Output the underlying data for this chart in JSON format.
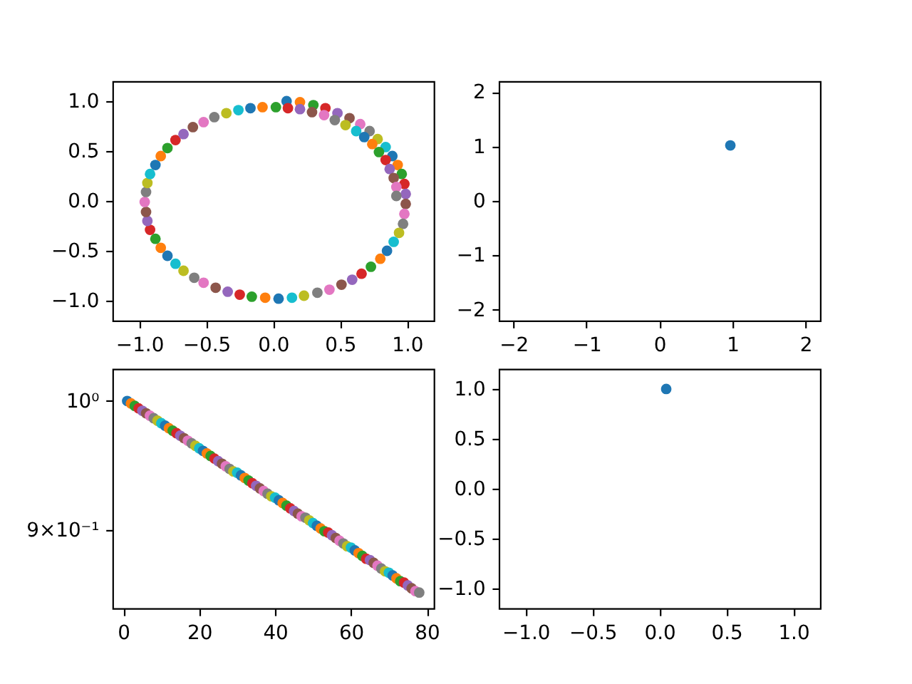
{
  "chart_data": [
    {
      "type": "scatter",
      "marker": "circle",
      "xlim": [
        -1.2,
        1.2
      ],
      "ylim": [
        -1.2,
        1.2
      ],
      "xticks": [
        {
          "value": -1,
          "label": "−1.0"
        },
        {
          "value": -0.5,
          "label": "−0.5"
        },
        {
          "value": 0,
          "label": "0.0"
        },
        0.5,
        {
          "value": 1,
          "label": "1.0"
        }
      ],
      "yticks": [
        {
          "value": -1,
          "label": "−1.0"
        },
        {
          "value": -0.5,
          "label": "−0.5"
        },
        {
          "value": 0,
          "label": "0.0"
        },
        0.5,
        {
          "value": 1,
          "label": "1.0"
        }
      ],
      "x": [
        0.1,
        0.2,
        0.3,
        0.39,
        0.48,
        0.57,
        0.65,
        0.72,
        0.78,
        0.84,
        0.89,
        0.93,
        0.96,
        0.98,
        0.99,
        0.99,
        0.98,
        0.97,
        0.94,
        0.9,
        0.85,
        0.8,
        0.73,
        0.66,
        0.59,
        0.51,
        0.42,
        0.33,
        0.23,
        0.14,
        0.04,
        -0.06,
        -0.16,
        -0.25,
        -0.34,
        -0.43,
        -0.52,
        -0.59,
        -0.67,
        -0.73,
        -0.79,
        -0.84,
        -0.88,
        -0.92,
        -0.94,
        -0.95,
        -0.96,
        -0.95,
        -0.94,
        -0.92,
        -0.88,
        -0.84,
        -0.79,
        -0.73,
        -0.67,
        -0.6,
        -0.52,
        -0.44,
        -0.35,
        -0.26,
        -0.17,
        -0.08,
        0.02,
        0.11,
        0.2,
        0.29,
        0.38,
        0.46,
        0.54,
        0.62,
        0.68,
        0.74,
        0.79,
        0.84,
        0.87,
        0.9,
        0.92,
        0.92
      ],
      "values": [
        1.0,
        0.99,
        0.96,
        0.93,
        0.88,
        0.83,
        0.77,
        0.7,
        0.62,
        0.54,
        0.45,
        0.36,
        0.27,
        0.17,
        0.07,
        -0.03,
        -0.13,
        -0.23,
        -0.32,
        -0.41,
        -0.5,
        -0.58,
        -0.66,
        -0.73,
        -0.79,
        -0.84,
        -0.89,
        -0.92,
        -0.95,
        -0.97,
        -0.98,
        -0.97,
        -0.96,
        -0.94,
        -0.91,
        -0.87,
        -0.82,
        -0.77,
        -0.7,
        -0.63,
        -0.55,
        -0.47,
        -0.38,
        -0.29,
        -0.2,
        -0.11,
        -0.01,
        0.09,
        0.18,
        0.27,
        0.36,
        0.45,
        0.53,
        0.61,
        0.67,
        0.74,
        0.79,
        0.84,
        0.88,
        0.91,
        0.93,
        0.94,
        0.94,
        0.93,
        0.92,
        0.89,
        0.86,
        0.81,
        0.76,
        0.7,
        0.64,
        0.57,
        0.49,
        0.41,
        0.32,
        0.23,
        0.14,
        0.05
      ],
      "colors": [
        "#1f77b4",
        "#ff7f0e",
        "#2ca02c",
        "#d62728",
        "#9467bd",
        "#8c564b",
        "#e377c2",
        "#7f7f7f",
        "#bcbd22",
        "#17becf",
        "#1f77b4",
        "#ff7f0e",
        "#2ca02c",
        "#d62728",
        "#9467bd",
        "#8c564b",
        "#e377c2",
        "#7f7f7f",
        "#bcbd22",
        "#17becf",
        "#1f77b4",
        "#ff7f0e",
        "#2ca02c",
        "#d62728",
        "#9467bd",
        "#8c564b",
        "#e377c2",
        "#7f7f7f",
        "#bcbd22",
        "#17becf",
        "#1f77b4",
        "#ff7f0e",
        "#2ca02c",
        "#d62728",
        "#9467bd",
        "#8c564b",
        "#e377c2",
        "#7f7f7f",
        "#bcbd22",
        "#17becf",
        "#1f77b4",
        "#ff7f0e",
        "#2ca02c",
        "#d62728",
        "#9467bd",
        "#8c564b",
        "#e377c2",
        "#7f7f7f",
        "#bcbd22",
        "#17becf",
        "#1f77b4",
        "#ff7f0e",
        "#2ca02c",
        "#d62728",
        "#9467bd",
        "#8c564b",
        "#e377c2",
        "#7f7f7f",
        "#bcbd22",
        "#17becf",
        "#1f77b4",
        "#ff7f0e",
        "#2ca02c",
        "#d62728",
        "#9467bd",
        "#8c564b",
        "#e377c2",
        "#7f7f7f",
        "#bcbd22",
        "#17becf",
        "#1f77b4",
        "#ff7f0e",
        "#2ca02c",
        "#d62728",
        "#9467bd",
        "#8c564b",
        "#e377c2",
        "#7f7f7f"
      ]
    },
    {
      "type": "scatter",
      "marker": "circle",
      "xlim": [
        -2.2,
        2.2
      ],
      "ylim": [
        -2.2,
        2.2
      ],
      "xticks": [
        {
          "value": -2,
          "label": "−2"
        },
        {
          "value": -1,
          "label": "−1"
        },
        0,
        1,
        2
      ],
      "yticks": [
        {
          "value": -2,
          "label": "−2"
        },
        {
          "value": -1,
          "label": "−1"
        },
        0,
        1,
        2
      ],
      "x": [
        0.97
      ],
      "values": [
        1.02
      ],
      "colors": [
        "#1f77b4"
      ]
    },
    {
      "type": "scatter",
      "marker": "circle",
      "log": "y",
      "xlim": [
        -2.85,
        81.85
      ],
      "ylim": [
        0.844,
        1.0265
      ],
      "xticks": [
        0,
        20,
        40,
        60,
        80
      ],
      "yticks": [
        {
          "value": 1,
          "label": "10⁰"
        },
        {
          "value": 0.9,
          "label": "9×10⁻¹"
        }
      ],
      "x": [
        1,
        2,
        3,
        4,
        5,
        6,
        7,
        8,
        9,
        10,
        11,
        12,
        13,
        14,
        15,
        16,
        17,
        18,
        19,
        20,
        21,
        22,
        23,
        24,
        25,
        26,
        27,
        28,
        29,
        30,
        31,
        32,
        33,
        34,
        35,
        36,
        37,
        38,
        39,
        40,
        41,
        42,
        43,
        44,
        45,
        46,
        47,
        48,
        49,
        50,
        51,
        52,
        53,
        54,
        55,
        56,
        57,
        58,
        59,
        60,
        61,
        62,
        63,
        64,
        65,
        66,
        67,
        68,
        69,
        70,
        71,
        72,
        73,
        74,
        75,
        76,
        77,
        78
      ],
      "values": [
        1.0,
        0.998,
        0.996,
        0.994,
        0.992,
        0.99,
        0.988,
        0.986,
        0.984,
        0.982,
        0.98,
        0.978,
        0.976,
        0.974,
        0.972,
        0.97,
        0.968,
        0.966,
        0.964,
        0.962,
        0.96,
        0.958,
        0.956,
        0.954,
        0.952,
        0.95,
        0.948,
        0.946,
        0.944,
        0.943,
        0.941,
        0.939,
        0.937,
        0.935,
        0.933,
        0.931,
        0.929,
        0.927,
        0.925,
        0.924,
        0.922,
        0.92,
        0.918,
        0.916,
        0.914,
        0.912,
        0.91,
        0.909,
        0.907,
        0.905,
        0.903,
        0.901,
        0.899,
        0.898,
        0.896,
        0.894,
        0.892,
        0.89,
        0.888,
        0.887,
        0.885,
        0.883,
        0.881,
        0.879,
        0.878,
        0.876,
        0.874,
        0.872,
        0.87,
        0.869,
        0.867,
        0.865,
        0.863,
        0.862,
        0.86,
        0.858,
        0.856,
        0.855
      ],
      "colors": [
        "#1f77b4",
        "#ff7f0e",
        "#2ca02c",
        "#d62728",
        "#9467bd",
        "#8c564b",
        "#e377c2",
        "#7f7f7f",
        "#bcbd22",
        "#17becf",
        "#1f77b4",
        "#ff7f0e",
        "#2ca02c",
        "#d62728",
        "#9467bd",
        "#8c564b",
        "#e377c2",
        "#7f7f7f",
        "#bcbd22",
        "#17becf",
        "#1f77b4",
        "#ff7f0e",
        "#2ca02c",
        "#d62728",
        "#9467bd",
        "#8c564b",
        "#e377c2",
        "#7f7f7f",
        "#bcbd22",
        "#17becf",
        "#1f77b4",
        "#ff7f0e",
        "#2ca02c",
        "#d62728",
        "#9467bd",
        "#8c564b",
        "#e377c2",
        "#7f7f7f",
        "#bcbd22",
        "#17becf",
        "#1f77b4",
        "#ff7f0e",
        "#2ca02c",
        "#d62728",
        "#9467bd",
        "#8c564b",
        "#e377c2",
        "#7f7f7f",
        "#bcbd22",
        "#17becf",
        "#1f77b4",
        "#ff7f0e",
        "#2ca02c",
        "#d62728",
        "#9467bd",
        "#8c564b",
        "#e377c2",
        "#7f7f7f",
        "#bcbd22",
        "#17becf",
        "#1f77b4",
        "#ff7f0e",
        "#2ca02c",
        "#d62728",
        "#9467bd",
        "#8c564b",
        "#e377c2",
        "#7f7f7f",
        "#bcbd22",
        "#17becf",
        "#1f77b4",
        "#ff7f0e",
        "#2ca02c",
        "#d62728",
        "#9467bd",
        "#8c564b",
        "#e377c2",
        "#7f7f7f"
      ]
    },
    {
      "type": "scatter",
      "marker": "circle",
      "xlim": [
        -1.2,
        1.2
      ],
      "ylim": [
        -1.2,
        1.2
      ],
      "xticks": [
        {
          "value": -1,
          "label": "−1.0"
        },
        {
          "value": -0.5,
          "label": "−0.5"
        },
        {
          "value": 0,
          "label": "0.0"
        },
        0.5,
        {
          "value": 1,
          "label": "1.0"
        }
      ],
      "yticks": [
        {
          "value": -1,
          "label": "−1.0"
        },
        {
          "value": -0.5,
          "label": "−0.5"
        },
        {
          "value": 0,
          "label": "0.0"
        },
        0.5,
        {
          "value": 1,
          "label": "1.0"
        }
      ],
      "x": [
        0.05
      ],
      "values": [
        1.0
      ],
      "colors": [
        "#1f77b4"
      ]
    }
  ]
}
